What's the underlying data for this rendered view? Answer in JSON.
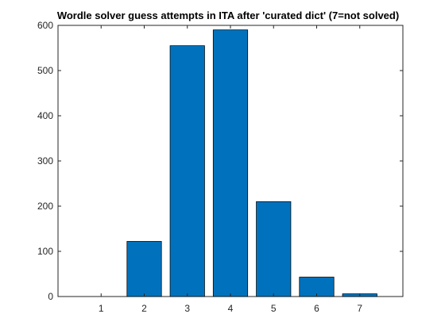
{
  "chart_data": {
    "type": "bar",
    "title": "Wordle solver guess attempts in ITA after 'curated dict' (7=not solved)",
    "xlabel": "",
    "ylabel": "",
    "categories": [
      "1",
      "2",
      "3",
      "4",
      "5",
      "6",
      "7"
    ],
    "values": [
      0,
      122,
      555,
      590,
      210,
      43,
      6
    ],
    "xlim": [
      0,
      8
    ],
    "ylim": [
      0,
      600
    ],
    "yticks": [
      0,
      100,
      200,
      300,
      400,
      500,
      600
    ],
    "bar_color": "#0072BD",
    "edge_color": "#000000",
    "grid": false,
    "legend": "none"
  }
}
